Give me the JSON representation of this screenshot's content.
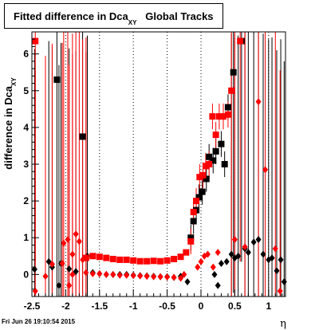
{
  "title": {
    "main": "Fitted difference in Dca",
    "sub": "XY",
    "suffix": "Global Tracks"
  },
  "footer": {
    "timestamp": "Fri Jun 26 19:10:54 2015"
  },
  "chart_data": {
    "type": "scatter",
    "title": "Fitted difference in Dca_XY  Global Tracks",
    "xlabel": "η",
    "ylabel": "difference in Dca_XY",
    "xlim": [
      -2.5,
      1.25
    ],
    "ylim": [
      -0.6,
      6.6
    ],
    "x_ticks": [
      -2.5,
      -2,
      -1.5,
      -1,
      -0.5,
      0,
      0.5,
      1
    ],
    "x_tick_labels": [
      "-2.5",
      "-2",
      "-1.5",
      "-1",
      "-0.5",
      "0",
      "0.5",
      "1"
    ],
    "y_ticks": [
      0,
      1,
      2,
      3,
      4,
      5,
      6
    ],
    "y_tick_labels": [
      "0",
      "1",
      "2",
      "3",
      "4",
      "5",
      "6"
    ],
    "grid": "vertical dotted",
    "colors": {
      "series1": "#000000",
      "series2": "#ff0000"
    },
    "series": [
      {
        "color": "#000000",
        "marker_legend": "black",
        "points": [
          {
            "x": -2.46,
            "y": 0.14,
            "m": "d"
          },
          {
            "x": -2.25,
            "y": 0.35,
            "m": "d"
          },
          {
            "x": -2.2,
            "y": 0.2,
            "m": "d"
          },
          {
            "x": -2.13,
            "y": 5.3,
            "m": "s"
          },
          {
            "x": -2.1,
            "y": -0.3,
            "m": "d"
          },
          {
            "x": -2.07,
            "y": 0.3,
            "m": "d"
          },
          {
            "x": -1.95,
            "y": 0.15,
            "m": "d"
          },
          {
            "x": -1.85,
            "y": 0.08,
            "m": "d"
          },
          {
            "x": -1.75,
            "y": 3.75,
            "m": "s"
          },
          {
            "x": -1.68,
            "y": 0.5,
            "m": "d"
          },
          {
            "x": -1.6,
            "y": 0.05,
            "m": "d"
          },
          {
            "x": -1.5,
            "y": 0.02,
            "m": "d"
          },
          {
            "x": -1.4,
            "y": 0.0,
            "m": "d"
          },
          {
            "x": -1.3,
            "y": 0.0,
            "m": "d"
          },
          {
            "x": -1.2,
            "y": 0.0,
            "m": "d"
          },
          {
            "x": -1.1,
            "y": 0.0,
            "m": "d"
          },
          {
            "x": -1.0,
            "y": -0.02,
            "m": "d"
          },
          {
            "x": -0.9,
            "y": -0.03,
            "m": "d"
          },
          {
            "x": -0.8,
            "y": -0.04,
            "m": "d"
          },
          {
            "x": -0.7,
            "y": -0.05,
            "m": "d"
          },
          {
            "x": -0.6,
            "y": -0.06,
            "m": "d"
          },
          {
            "x": -0.5,
            "y": -0.06,
            "m": "d"
          },
          {
            "x": -0.4,
            "y": -0.08,
            "m": "d"
          },
          {
            "x": -0.3,
            "y": -0.05,
            "m": "d"
          },
          {
            "x": -0.2,
            "y": -0.2,
            "m": "d"
          },
          {
            "x": -0.15,
            "y": 1.0,
            "m": "s"
          },
          {
            "x": -0.11,
            "y": 1.45,
            "m": "s"
          },
          {
            "x": -0.07,
            "y": 1.75,
            "m": "s"
          },
          {
            "x": -0.03,
            "y": 2.1,
            "m": "s"
          },
          {
            "x": 0.02,
            "y": 2.25,
            "m": "s"
          },
          {
            "x": 0.08,
            "y": 2.6,
            "m": "s"
          },
          {
            "x": 0.12,
            "y": 3.2,
            "m": "s"
          },
          {
            "x": 0.18,
            "y": 3.1,
            "m": "s"
          },
          {
            "x": 0.22,
            "y": 3.35,
            "m": "s"
          },
          {
            "x": 0.3,
            "y": 3.55,
            "m": "s"
          },
          {
            "x": 0.35,
            "y": 3.0,
            "m": "s"
          },
          {
            "x": 0.4,
            "y": 4.55,
            "m": "s"
          },
          {
            "x": 0.48,
            "y": 5.5,
            "m": "s"
          },
          {
            "x": 0.55,
            "y": 0.5,
            "m": "d"
          },
          {
            "x": 0.6,
            "y": 6.35,
            "m": "s"
          },
          {
            "x": 0.65,
            "y": 0.7,
            "m": "d"
          },
          {
            "x": 0.7,
            "y": 0.6,
            "m": "d"
          },
          {
            "x": 0.78,
            "y": 0.88,
            "m": "d"
          },
          {
            "x": 0.85,
            "y": 0.95,
            "m": "d"
          },
          {
            "x": 0.92,
            "y": 0.55,
            "m": "d"
          },
          {
            "x": 1.0,
            "y": 0.4,
            "m": "d"
          },
          {
            "x": 1.05,
            "y": 0.45,
            "m": "d"
          },
          {
            "x": 1.12,
            "y": 0.1,
            "m": "d"
          },
          {
            "x": 1.18,
            "y": 0.4,
            "m": "d"
          },
          {
            "x": 1.23,
            "y": -0.2,
            "m": "d"
          },
          {
            "x": 0.2,
            "y": 0.0,
            "m": "d"
          },
          {
            "x": 0.25,
            "y": -0.3,
            "m": "d"
          },
          {
            "x": 0.3,
            "y": 0.3,
            "m": "d"
          },
          {
            "x": 0.38,
            "y": 0.35,
            "m": "d"
          },
          {
            "x": 0.45,
            "y": 0.55,
            "m": "d"
          },
          {
            "x": 0.5,
            "y": 0.45,
            "m": "d"
          }
        ]
      },
      {
        "color": "#ff0000",
        "marker_legend": "red",
        "points": [
          {
            "x": -2.45,
            "y": 6.35,
            "m": "s"
          },
          {
            "x": -2.3,
            "y": -0.05,
            "m": "d"
          },
          {
            "x": -2.2,
            "y": 0.28,
            "m": "d"
          },
          {
            "x": -2.03,
            "y": 0.85,
            "m": "d"
          },
          {
            "x": -1.97,
            "y": 0.95,
            "m": "d"
          },
          {
            "x": -1.9,
            "y": 0.55,
            "m": "d"
          },
          {
            "x": -1.85,
            "y": 1.1,
            "m": "d"
          },
          {
            "x": -1.8,
            "y": 0.9,
            "m": "d"
          },
          {
            "x": -1.75,
            "y": 0.4,
            "m": "d"
          },
          {
            "x": -1.7,
            "y": 0.45,
            "m": "s"
          },
          {
            "x": -1.6,
            "y": 0.5,
            "m": "s"
          },
          {
            "x": -1.5,
            "y": 0.48,
            "m": "s"
          },
          {
            "x": -1.4,
            "y": 0.45,
            "m": "s"
          },
          {
            "x": -1.3,
            "y": 0.42,
            "m": "s"
          },
          {
            "x": -1.2,
            "y": 0.4,
            "m": "s"
          },
          {
            "x": -1.1,
            "y": 0.4,
            "m": "s"
          },
          {
            "x": -1.0,
            "y": 0.38,
            "m": "s"
          },
          {
            "x": -0.9,
            "y": 0.36,
            "m": "s"
          },
          {
            "x": -0.8,
            "y": 0.36,
            "m": "s"
          },
          {
            "x": -0.7,
            "y": 0.37,
            "m": "s"
          },
          {
            "x": -0.6,
            "y": 0.36,
            "m": "s"
          },
          {
            "x": -0.5,
            "y": 0.38,
            "m": "s"
          },
          {
            "x": -0.4,
            "y": 0.42,
            "m": "s"
          },
          {
            "x": -0.3,
            "y": 0.48,
            "m": "s"
          },
          {
            "x": -0.22,
            "y": 0.6,
            "m": "s"
          },
          {
            "x": -0.15,
            "y": 0.9,
            "m": "s"
          },
          {
            "x": -0.11,
            "y": 1.7,
            "m": "s"
          },
          {
            "x": -0.07,
            "y": 2.0,
            "m": "s"
          },
          {
            "x": -0.02,
            "y": 2.65,
            "m": "s"
          },
          {
            "x": 0.03,
            "y": 2.7,
            "m": "s"
          },
          {
            "x": 0.07,
            "y": 2.95,
            "m": "s"
          },
          {
            "x": 0.12,
            "y": 3.0,
            "m": "s"
          },
          {
            "x": 0.17,
            "y": 4.3,
            "m": "s"
          },
          {
            "x": 0.22,
            "y": 3.8,
            "m": "s"
          },
          {
            "x": 0.27,
            "y": 4.3,
            "m": "s"
          },
          {
            "x": 0.33,
            "y": 4.3,
            "m": "s"
          },
          {
            "x": 0.4,
            "y": 4.35,
            "m": "s"
          },
          {
            "x": 0.45,
            "y": 5.0,
            "m": "s"
          },
          {
            "x": 0.5,
            "y": 0.95,
            "m": "d"
          },
          {
            "x": 0.58,
            "y": 6.35,
            "m": "s"
          },
          {
            "x": 0.65,
            "y": 0.75,
            "m": "d"
          },
          {
            "x": 0.85,
            "y": 4.7,
            "m": "d"
          },
          {
            "x": 0.95,
            "y": 2.85,
            "m": "d"
          },
          {
            "x": 1.1,
            "y": 0.7,
            "m": "d"
          },
          {
            "x": 1.17,
            "y": -0.45,
            "m": "d"
          },
          {
            "x": -0.25,
            "y": 0.0,
            "m": "d"
          },
          {
            "x": -0.05,
            "y": 0.2,
            "m": "d"
          },
          {
            "x": 0.0,
            "y": 0.35,
            "m": "d"
          },
          {
            "x": 0.05,
            "y": 0.5,
            "m": "d"
          },
          {
            "x": 0.1,
            "y": 0.55,
            "m": "d"
          },
          {
            "x": 0.18,
            "y": 0.2,
            "m": "d"
          },
          {
            "x": 0.25,
            "y": 0.6,
            "m": "d"
          },
          {
            "x": -2.45,
            "y": -0.45,
            "m": "d"
          },
          {
            "x": -2.05,
            "y": 0.3,
            "m": "d"
          },
          {
            "x": -1.95,
            "y": -0.3,
            "m": "d"
          },
          {
            "x": -1.9,
            "y": 0.0,
            "m": "d"
          },
          {
            "x": -1.7,
            "y": 0.05,
            "m": "d"
          },
          {
            "x": -1.6,
            "y": 0.02,
            "m": "d"
          },
          {
            "x": -1.5,
            "y": 0.02,
            "m": "d"
          },
          {
            "x": -1.4,
            "y": 0.0,
            "m": "d"
          },
          {
            "x": -1.3,
            "y": 0.0,
            "m": "d"
          },
          {
            "x": -1.2,
            "y": -0.02,
            "m": "d"
          },
          {
            "x": -1.1,
            "y": -0.02,
            "m": "d"
          },
          {
            "x": -1.0,
            "y": -0.03,
            "m": "d"
          },
          {
            "x": -0.9,
            "y": -0.04,
            "m": "d"
          },
          {
            "x": -0.8,
            "y": -0.05,
            "m": "d"
          },
          {
            "x": -0.7,
            "y": -0.06,
            "m": "d"
          },
          {
            "x": -0.6,
            "y": -0.06,
            "m": "d"
          },
          {
            "x": -0.5,
            "y": -0.07,
            "m": "d"
          },
          {
            "x": -0.4,
            "y": -0.08,
            "m": "d"
          },
          {
            "x": -0.3,
            "y": -0.1,
            "m": "d"
          }
        ]
      }
    ]
  }
}
